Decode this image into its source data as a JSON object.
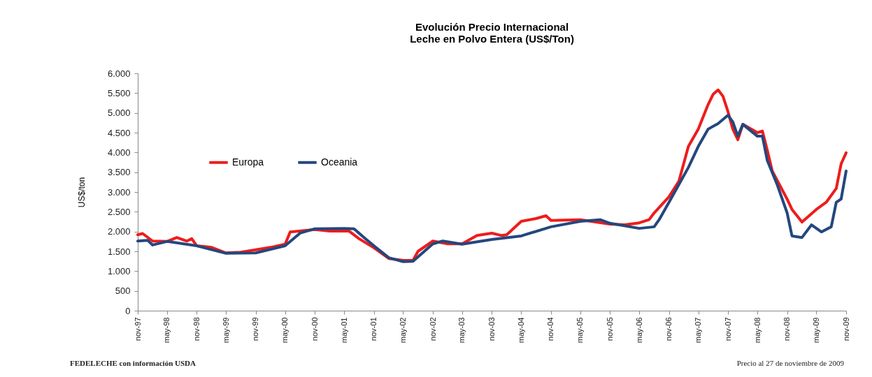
{
  "chart_data": {
    "type": "line",
    "title": "Evolución Precio Internacional",
    "subtitle": "Leche en Polvo Entera (US$/Ton)",
    "ylabel": "US$/ton",
    "xlim": [
      "1997-11",
      "2009-11"
    ],
    "xticks": [
      {
        "value": "1997-11",
        "label": "nov-97"
      },
      {
        "value": "1998-05",
        "label": "may-98"
      },
      {
        "value": "1998-11",
        "label": "nov-98"
      },
      {
        "value": "1999-05",
        "label": "may-99"
      },
      {
        "value": "1999-11",
        "label": "nov-99"
      },
      {
        "value": "2000-05",
        "label": "may-00"
      },
      {
        "value": "2000-11",
        "label": "nov-00"
      },
      {
        "value": "2001-05",
        "label": "may-01"
      },
      {
        "value": "2001-11",
        "label": "nov-01"
      },
      {
        "value": "2002-05",
        "label": "may-02"
      },
      {
        "value": "2002-11",
        "label": "nov-02"
      },
      {
        "value": "2003-05",
        "label": "may-03"
      },
      {
        "value": "2003-11",
        "label": "nov-03"
      },
      {
        "value": "2004-05",
        "label": "may-04"
      },
      {
        "value": "2004-11",
        "label": "nov-04"
      },
      {
        "value": "2005-05",
        "label": "may-05"
      },
      {
        "value": "2005-11",
        "label": "nov-05"
      },
      {
        "value": "2006-05",
        "label": "may-06"
      },
      {
        "value": "2006-11",
        "label": "nov-06"
      },
      {
        "value": "2007-05",
        "label": "may-07"
      },
      {
        "value": "2007-11",
        "label": "nov-07"
      },
      {
        "value": "2008-05",
        "label": "may-08"
      },
      {
        "value": "2008-11",
        "label": "nov-08"
      },
      {
        "value": "2009-05",
        "label": "may-09"
      },
      {
        "value": "2009-11",
        "label": "nov-09"
      }
    ],
    "ylim": [
      0,
      6000
    ],
    "yticks": [
      {
        "value": 0,
        "label": "0"
      },
      {
        "value": 500,
        "label": "500"
      },
      {
        "value": 1000,
        "label": "1.000"
      },
      {
        "value": 1500,
        "label": "1.500"
      },
      {
        "value": 2000,
        "label": "2.000"
      },
      {
        "value": 2500,
        "label": "2.500"
      },
      {
        "value": 3000,
        "label": "3.000"
      },
      {
        "value": 3500,
        "label": "3.500"
      },
      {
        "value": 4000,
        "label": "4.000"
      },
      {
        "value": 4500,
        "label": "4.500"
      },
      {
        "value": 5000,
        "label": "5.000"
      },
      {
        "value": 5500,
        "label": "5.500"
      },
      {
        "value": 6000,
        "label": "6.000"
      }
    ],
    "legend": "top left",
    "marker": "none",
    "series": [
      {
        "name": "Europa",
        "color": "#ee1c1c",
        "x": [
          "1997-11",
          "1997-12",
          "1998-02",
          "1998-05",
          "1998-07",
          "1998-09",
          "1998-10",
          "1998-11",
          "1999-02",
          "1999-05",
          "1999-08",
          "1999-11",
          "2000-02",
          "2000-05",
          "2000-06",
          "2000-11",
          "2001-02",
          "2001-06",
          "2001-08",
          "2001-11",
          "2002-02",
          "2002-05",
          "2002-07",
          "2002-08",
          "2002-11",
          "2003-02",
          "2003-05",
          "2003-08",
          "2003-11",
          "2004-01",
          "2004-02",
          "2004-05",
          "2004-08",
          "2004-10",
          "2004-11",
          "2005-05",
          "2005-11",
          "2006-02",
          "2006-05",
          "2006-07",
          "2006-08",
          "2006-11",
          "2007-01",
          "2007-03",
          "2007-05",
          "2007-07",
          "2007-08",
          "2007-09",
          "2007-10",
          "2007-11",
          "2007-12",
          "2008-01",
          "2008-02",
          "2008-05",
          "2008-06",
          "2008-07",
          "2008-08",
          "2008-11",
          "2008-12",
          "2009-02",
          "2009-05",
          "2009-07",
          "2009-09",
          "2009-10",
          "2009-11"
        ],
        "values": [
          1920,
          1950,
          1760,
          1750,
          1850,
          1760,
          1820,
          1640,
          1600,
          1460,
          1480,
          1540,
          1600,
          1680,
          1990,
          2050,
          2010,
          2010,
          1820,
          1590,
          1320,
          1270,
          1270,
          1500,
          1760,
          1690,
          1690,
          1900,
          1960,
          1900,
          1920,
          2260,
          2330,
          2400,
          2280,
          2300,
          2190,
          2170,
          2220,
          2300,
          2470,
          2880,
          3270,
          4150,
          4590,
          5210,
          5470,
          5580,
          5420,
          5030,
          4590,
          4320,
          4710,
          4500,
          4540,
          4060,
          3530,
          2820,
          2560,
          2240,
          2560,
          2740,
          3090,
          3710,
          3990
        ]
      },
      {
        "name": "Oceania",
        "color": "#24477e",
        "x": [
          "1997-11",
          "1998-01",
          "1998-02",
          "1998-05",
          "1998-11",
          "1999-05",
          "1999-11",
          "2000-05",
          "2000-08",
          "2000-11",
          "2001-05",
          "2001-07",
          "2001-09",
          "2001-11",
          "2002-02",
          "2002-05",
          "2002-07",
          "2002-11",
          "2003-01",
          "2003-05",
          "2003-11",
          "2004-05",
          "2004-11",
          "2005-05",
          "2005-09",
          "2005-11",
          "2006-05",
          "2006-08",
          "2006-09",
          "2006-11",
          "2007-03",
          "2007-05",
          "2007-07",
          "2007-09",
          "2007-11",
          "2007-12",
          "2008-01",
          "2008-02",
          "2008-05",
          "2008-06",
          "2008-07",
          "2008-09",
          "2008-11",
          "2008-12",
          "2009-02",
          "2009-04",
          "2009-06",
          "2009-08",
          "2009-09",
          "2009-10",
          "2009-11"
        ],
        "values": [
          1760,
          1780,
          1660,
          1750,
          1640,
          1450,
          1460,
          1640,
          1960,
          2070,
          2080,
          2070,
          1850,
          1640,
          1340,
          1240,
          1250,
          1690,
          1760,
          1680,
          1800,
          1890,
          2120,
          2260,
          2300,
          2210,
          2080,
          2120,
          2300,
          2740,
          3620,
          4150,
          4590,
          4730,
          4940,
          4770,
          4410,
          4710,
          4410,
          4410,
          3800,
          3180,
          2470,
          1890,
          1850,
          2170,
          1990,
          2120,
          2740,
          2820,
          3530
        ]
      }
    ],
    "annotations": [
      "FEDELECHE con información USDA",
      "Precio al 27 de noviembre de 2009"
    ]
  }
}
